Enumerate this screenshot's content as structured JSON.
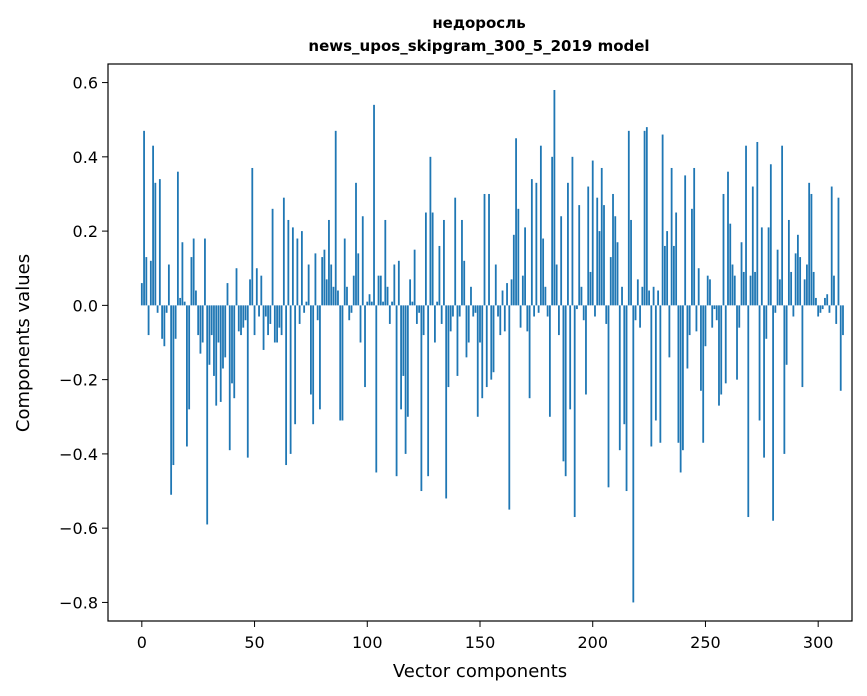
{
  "chart_data": {
    "type": "bar",
    "title": [
      "недоросль",
      "news_upos_skipgram_300_5_2019 model"
    ],
    "xlabel": "Vector components",
    "ylabel": "Components values",
    "xlim": [
      -15,
      315
    ],
    "ylim": [
      -0.85,
      0.65
    ],
    "xticks": [
      0,
      50,
      100,
      150,
      200,
      250,
      300
    ],
    "yticks": [
      0.6,
      0.4,
      0.2,
      0.0,
      -0.2,
      -0.4,
      -0.6,
      -0.8
    ],
    "ytick_labels": [
      "0.6",
      "0.4",
      "0.2",
      "0.0",
      "−0.2",
      "−0.4",
      "−0.6",
      "−0.8"
    ],
    "bar_color": "#1f77b4",
    "grid": false,
    "values": [
      0.06,
      0.47,
      0.13,
      -0.08,
      0.12,
      0.43,
      0.33,
      -0.02,
      0.34,
      -0.09,
      -0.11,
      -0.02,
      0.11,
      -0.51,
      -0.43,
      -0.09,
      0.36,
      0.02,
      0.17,
      0.01,
      -0.38,
      -0.28,
      0.13,
      0.18,
      0.04,
      -0.08,
      -0.13,
      -0.1,
      0.18,
      -0.59,
      -0.16,
      -0.08,
      -0.19,
      -0.27,
      -0.1,
      -0.26,
      -0.17,
      -0.14,
      0.06,
      -0.39,
      -0.21,
      -0.25,
      0.1,
      -0.07,
      -0.08,
      -0.06,
      -0.04,
      -0.41,
      0.07,
      0.37,
      -0.08,
      0.1,
      -0.03,
      0.08,
      -0.12,
      -0.03,
      -0.08,
      -0.05,
      0.26,
      -0.1,
      -0.1,
      -0.06,
      -0.08,
      0.29,
      -0.43,
      0.23,
      -0.4,
      0.21,
      -0.32,
      0.18,
      -0.05,
      0.2,
      -0.02,
      0.01,
      0.11,
      -0.24,
      -0.32,
      0.14,
      -0.04,
      -0.28,
      0.13,
      0.15,
      0.07,
      0.23,
      0.11,
      0.05,
      0.47,
      0.04,
      -0.31,
      -0.31,
      0.18,
      0.05,
      -0.04,
      -0.02,
      0.08,
      0.33,
      0.14,
      -0.1,
      0.24,
      -0.22,
      0.01,
      0.03,
      0.01,
      0.54,
      -0.45,
      0.08,
      0.08,
      0.01,
      0.23,
      0.05,
      -0.05,
      0.01,
      0.11,
      -0.46,
      0.12,
      -0.28,
      -0.19,
      -0.4,
      -0.3,
      0.07,
      0.01,
      0.15,
      -0.05,
      -0.02,
      -0.5,
      -0.08,
      0.25,
      -0.46,
      0.4,
      0.25,
      -0.1,
      0.01,
      0.16,
      -0.05,
      0.23,
      -0.52,
      -0.22,
      -0.07,
      -0.03,
      0.29,
      -0.19,
      -0.03,
      0.23,
      0.12,
      -0.14,
      -0.1,
      0.05,
      -0.03,
      -0.02,
      -0.3,
      -0.1,
      -0.25,
      0.3,
      -0.22,
      0.3,
      -0.2,
      -0.18,
      0.11,
      -0.03,
      -0.08,
      0.04,
      -0.07,
      0.06,
      -0.55,
      0.07,
      0.19,
      0.45,
      0.26,
      -0.06,
      0.08,
      0.21,
      -0.07,
      -0.25,
      0.34,
      -0.03,
      0.33,
      -0.02,
      0.43,
      0.18,
      0.05,
      -0.03,
      -0.3,
      0.4,
      0.58,
      0.11,
      -0.08,
      0.24,
      -0.42,
      -0.46,
      0.33,
      -0.28,
      0.4,
      -0.57,
      -0.01,
      0.27,
      0.05,
      -0.04,
      -0.24,
      0.32,
      0.09,
      0.39,
      -0.03,
      0.29,
      0.2,
      0.37,
      0.27,
      -0.05,
      -0.49,
      0.13,
      0.3,
      0.24,
      0.17,
      -0.39,
      0.05,
      -0.32,
      -0.5,
      0.47,
      0.23,
      -0.8,
      -0.04,
      0.07,
      -0.06,
      0.05,
      0.47,
      0.48,
      0.04,
      -0.38,
      0.05,
      -0.31,
      0.04,
      -0.37,
      0.46,
      0.16,
      0.2,
      -0.14,
      0.37,
      0.16,
      0.25,
      -0.37,
      -0.45,
      -0.39,
      0.35,
      -0.17,
      -0.08,
      0.26,
      0.37,
      -0.07,
      0.1,
      -0.23,
      -0.37,
      -0.11,
      0.08,
      0.07,
      -0.06,
      -0.01,
      -0.04,
      -0.27,
      -0.24,
      0.3,
      -0.21,
      0.36,
      0.22,
      0.11,
      0.08,
      -0.2,
      -0.06,
      0.17,
      0.09,
      0.43,
      -0.57,
      0.08,
      0.32,
      0.09,
      0.44,
      -0.31,
      0.21,
      -0.41,
      -0.09,
      0.21,
      0.38,
      -0.58,
      -0.02,
      0.15,
      0.07,
      0.43,
      -0.4,
      -0.16,
      0.23,
      0.09,
      -0.03,
      0.14,
      0.19,
      0.13,
      -0.22,
      0.07,
      0.11,
      0.33,
      0.3,
      0.09,
      0.02,
      -0.03,
      -0.02,
      -0.01,
      0.02,
      0.03,
      -0.02,
      0.32,
      0.08,
      -0.05,
      0.29,
      -0.23,
      -0.08
    ]
  }
}
